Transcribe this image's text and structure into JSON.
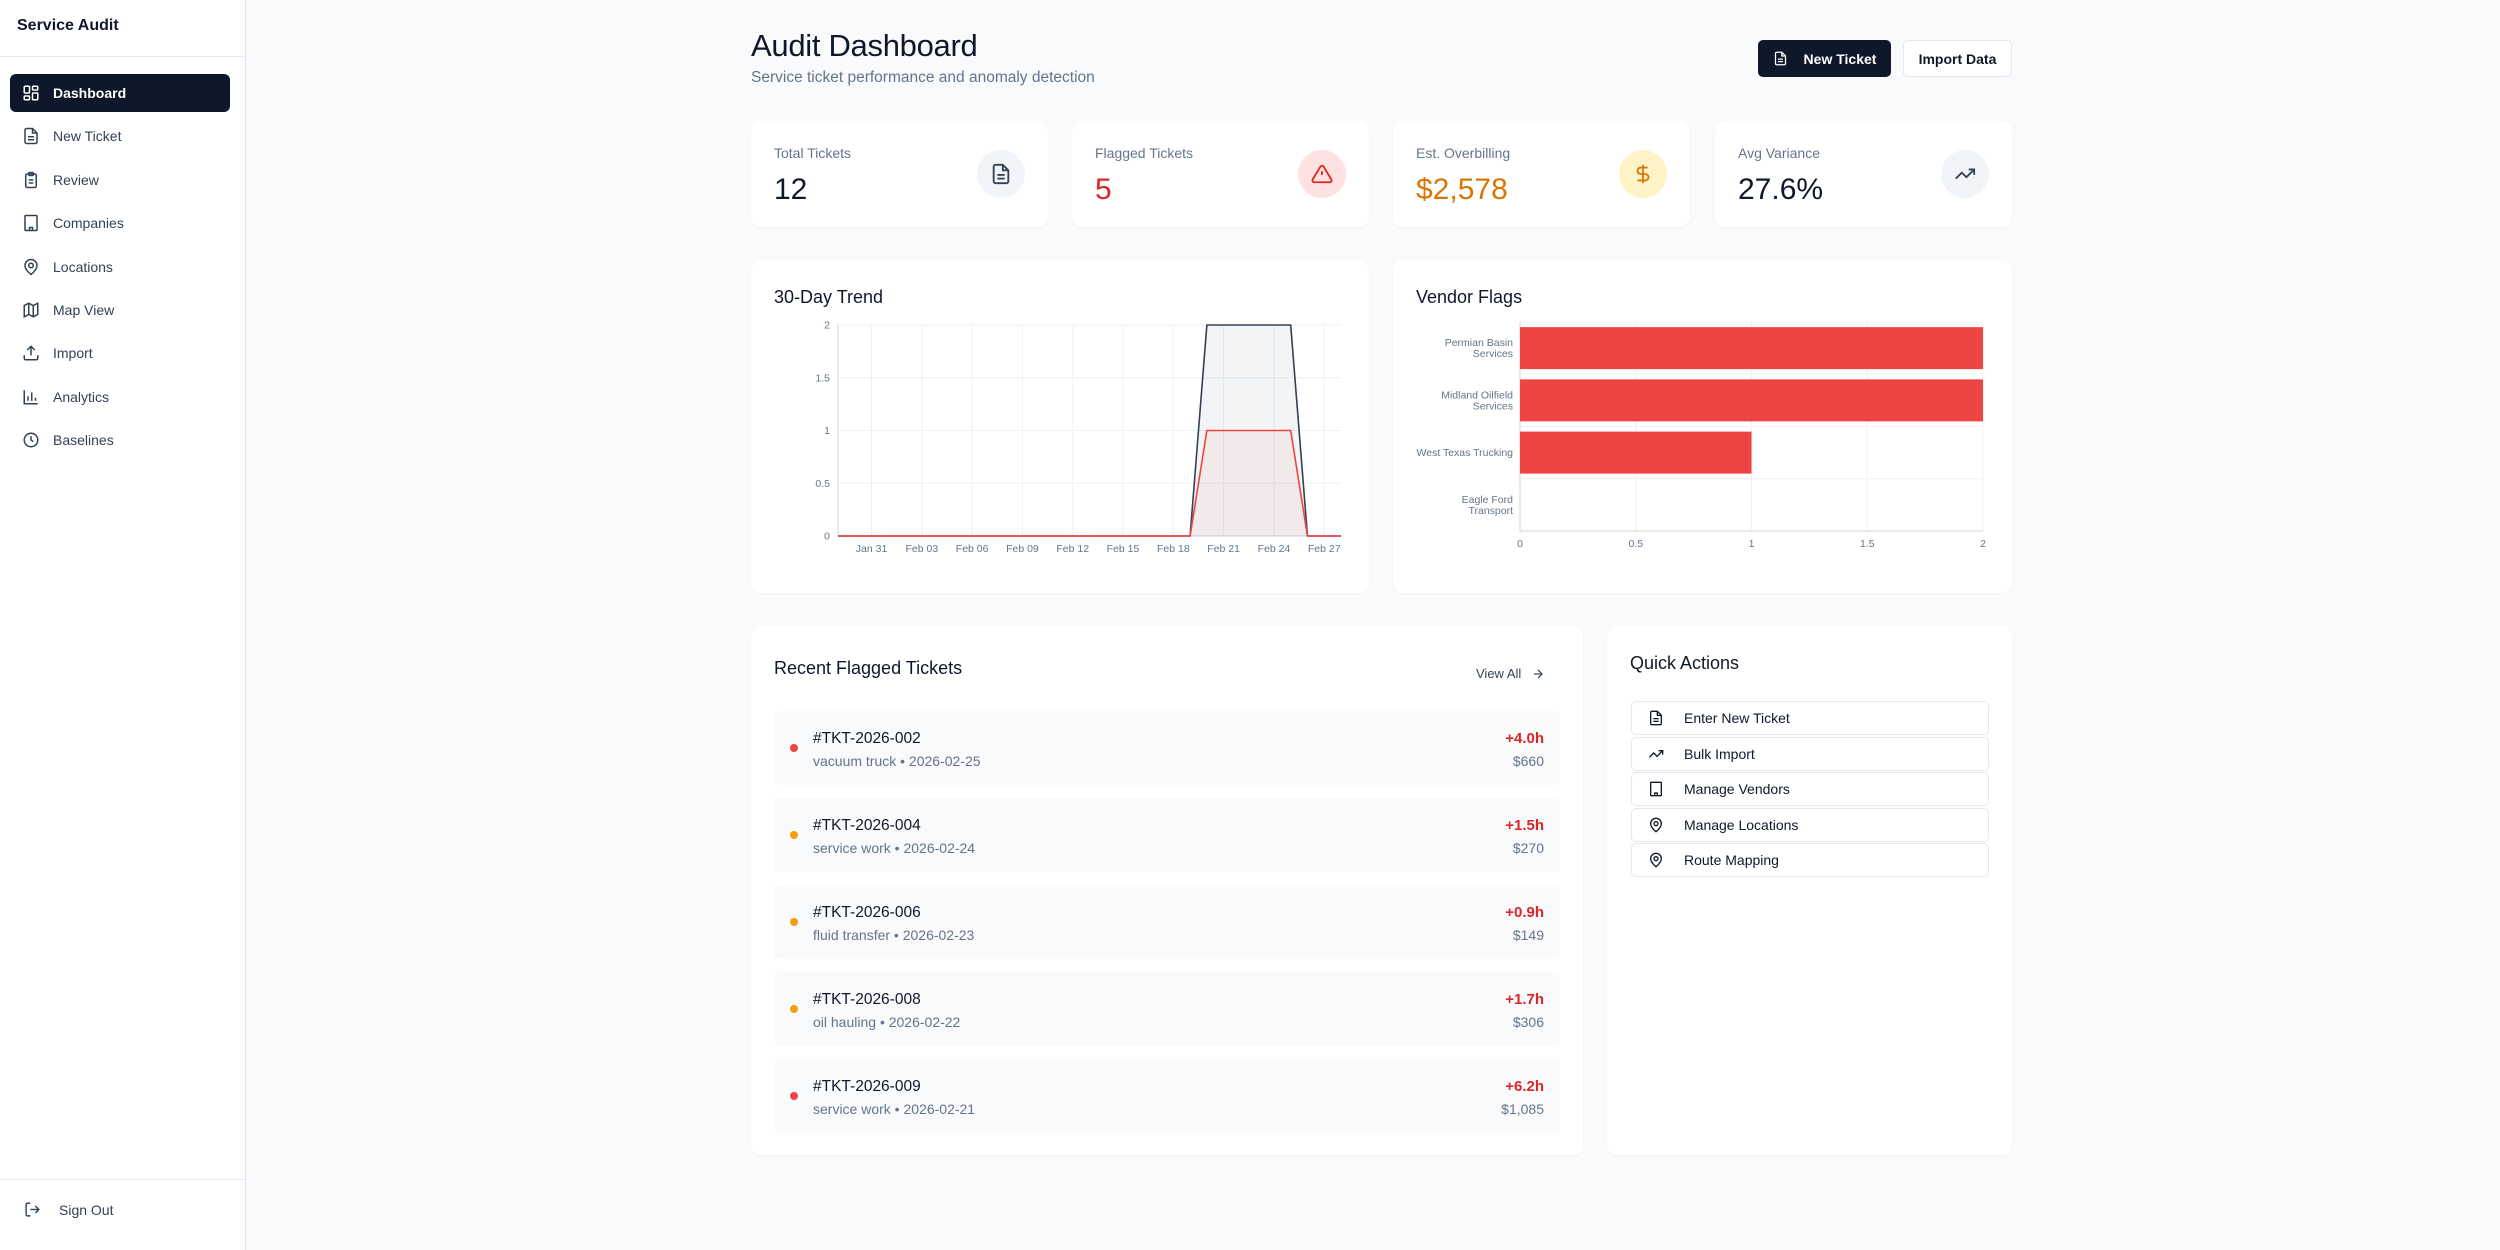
{
  "app": {
    "brand": "Service Audit"
  },
  "sidebar": {
    "items": [
      {
        "label": "Dashboard",
        "icon": "dashboard-grid-icon",
        "active": true
      },
      {
        "label": "New Ticket",
        "icon": "file-text-icon",
        "active": false
      },
      {
        "label": "Review",
        "icon": "clipboard-icon",
        "active": false
      },
      {
        "label": "Companies",
        "icon": "building-icon",
        "active": false
      },
      {
        "label": "Locations",
        "icon": "map-pin-icon",
        "active": false
      },
      {
        "label": "Map View",
        "icon": "map-icon",
        "active": false
      },
      {
        "label": "Import",
        "icon": "upload-icon",
        "active": false
      },
      {
        "label": "Analytics",
        "icon": "bar-chart-icon",
        "active": false
      },
      {
        "label": "Baselines",
        "icon": "clock-icon",
        "active": false
      }
    ],
    "sign_out": "Sign Out"
  },
  "header": {
    "title": "Audit Dashboard",
    "subtitle": "Service ticket performance and anomaly detection",
    "new_ticket_label": "New Ticket",
    "import_label": "Import Data"
  },
  "stats": [
    {
      "label": "Total Tickets",
      "value": "12",
      "value_color": "#0f172a",
      "icon": "file-text-icon",
      "icon_bg": "#f1f5f9",
      "icon_color": "#334155"
    },
    {
      "label": "Flagged Tickets",
      "value": "5",
      "value_color": "#dc2626",
      "icon": "alert-triangle-icon",
      "icon_bg": "#fee2e2",
      "icon_color": "#dc2626"
    },
    {
      "label": "Est. Overbilling",
      "value": "$2,578",
      "value_color": "#d97706",
      "icon": "dollar-icon",
      "icon_bg": "#fef3c7",
      "icon_color": "#d97706"
    },
    {
      "label": "Avg Variance",
      "value": "27.6%",
      "value_color": "#0f172a",
      "icon": "trending-up-icon",
      "icon_bg": "#f1f5f9",
      "icon_color": "#334155"
    }
  ],
  "trend": {
    "title": "30-Day Trend"
  },
  "vendors": {
    "title": "Vendor Flags"
  },
  "chart_data": [
    {
      "type": "area",
      "title": "30-Day Trend",
      "x_tick_labels": [
        "Jan 31",
        "Feb 03",
        "Feb 06",
        "Feb 09",
        "Feb 12",
        "Feb 15",
        "Feb 18",
        "Feb 21",
        "Feb 24",
        "Feb 27"
      ],
      "y_ticks": [
        "0",
        "0.5",
        "1",
        "1.5",
        "2"
      ],
      "ylim": [
        0,
        2
      ],
      "x_dates": [
        "Jan 29",
        "Jan 30",
        "Jan 31",
        "Feb 01",
        "Feb 02",
        "Feb 03",
        "Feb 04",
        "Feb 05",
        "Feb 06",
        "Feb 07",
        "Feb 08",
        "Feb 09",
        "Feb 10",
        "Feb 11",
        "Feb 12",
        "Feb 13",
        "Feb 14",
        "Feb 15",
        "Feb 16",
        "Feb 17",
        "Feb 18",
        "Feb 19",
        "Feb 20",
        "Feb 21",
        "Feb 22",
        "Feb 23",
        "Feb 24",
        "Feb 25",
        "Feb 26",
        "Feb 27",
        "Feb 28"
      ],
      "series": [
        {
          "color": "#334155",
          "values": [
            0,
            0,
            0,
            0,
            0,
            0,
            0,
            0,
            0,
            0,
            0,
            0,
            0,
            0,
            0,
            0,
            0,
            0,
            0,
            0,
            0,
            0,
            2,
            2,
            2,
            2,
            2,
            2,
            0,
            0,
            0
          ]
        },
        {
          "color": "#ef4444",
          "values": [
            0,
            0,
            0,
            0,
            0,
            0,
            0,
            0,
            0,
            0,
            0,
            0,
            0,
            0,
            0,
            0,
            0,
            0,
            0,
            0,
            0,
            0,
            1,
            1,
            1,
            1,
            1,
            1,
            0,
            0,
            0
          ]
        }
      ],
      "grid": true
    },
    {
      "type": "bar",
      "orientation": "horizontal",
      "title": "Vendor Flags",
      "categories": [
        [
          "Permian Basin",
          "Services"
        ],
        [
          "Midland Oilfield",
          "Services"
        ],
        [
          "West Texas Trucking"
        ],
        [
          "Eagle Ford",
          "Transport"
        ]
      ],
      "values": [
        2,
        2,
        1,
        0
      ],
      "xlim": [
        0,
        2
      ],
      "x_ticks": [
        "0",
        "0.5",
        "1",
        "1.5",
        "2"
      ],
      "color": "#ef4444",
      "grid": true
    }
  ],
  "recent": {
    "title": "Recent Flagged Tickets",
    "view_all": "View All",
    "tickets": [
      {
        "id": "#TKT-2026-002",
        "meta": "vacuum truck • 2026-02-25",
        "delta": "+4.0h",
        "amount": "$660",
        "severity_color": "#ef4444"
      },
      {
        "id": "#TKT-2026-004",
        "meta": "service work • 2026-02-24",
        "delta": "+1.5h",
        "amount": "$270",
        "severity_color": "#f59e0b"
      },
      {
        "id": "#TKT-2026-006",
        "meta": "fluid transfer • 2026-02-23",
        "delta": "+0.9h",
        "amount": "$149",
        "severity_color": "#f59e0b"
      },
      {
        "id": "#TKT-2026-008",
        "meta": "oil hauling • 2026-02-22",
        "delta": "+1.7h",
        "amount": "$306",
        "severity_color": "#f59e0b"
      },
      {
        "id": "#TKT-2026-009",
        "meta": "service work • 2026-02-21",
        "delta": "+6.2h",
        "amount": "$1,085",
        "severity_color": "#ef4444"
      }
    ]
  },
  "quick_actions": {
    "title": "Quick Actions",
    "items": [
      {
        "label": "Enter New Ticket",
        "icon": "file-text-icon"
      },
      {
        "label": "Bulk Import",
        "icon": "trending-up-icon"
      },
      {
        "label": "Manage Vendors",
        "icon": "building-icon"
      },
      {
        "label": "Manage Locations",
        "icon": "map-pin-icon"
      },
      {
        "label": "Route Mapping",
        "icon": "map-pin-icon"
      }
    ]
  }
}
